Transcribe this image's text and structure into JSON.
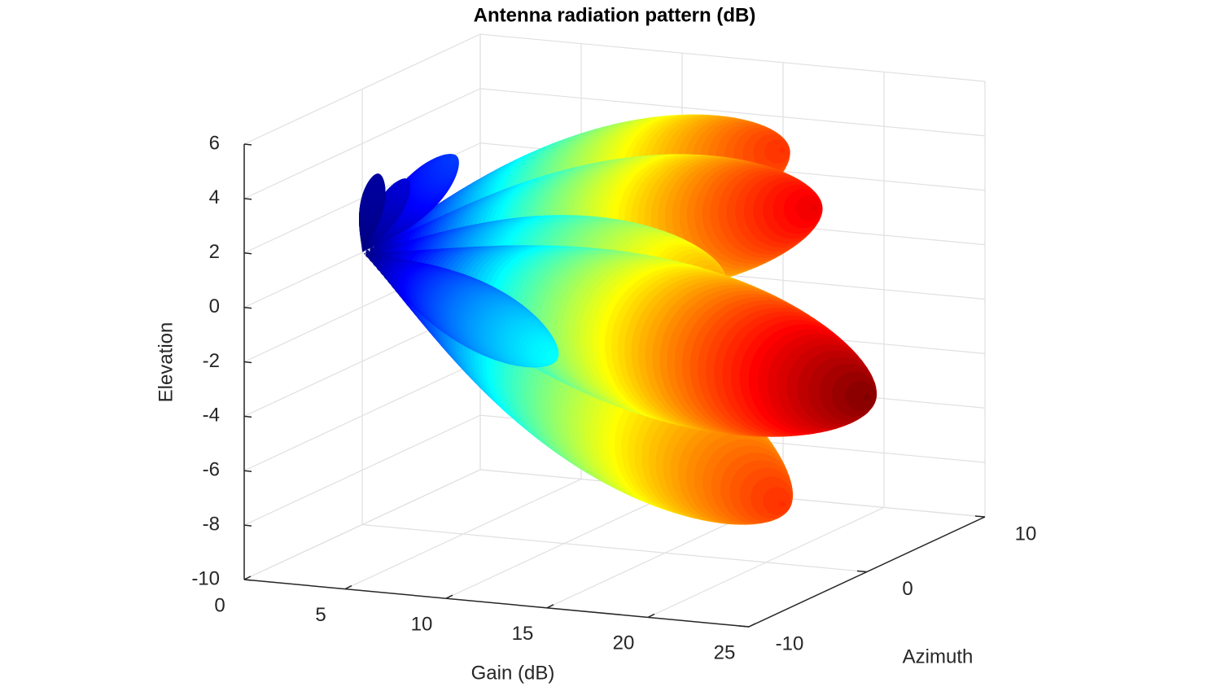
{
  "chart_data": {
    "type": "surface3d",
    "title": "Antenna radiation pattern (dB)",
    "xlabel": "Gain (dB)",
    "ylabel": "Azimuth",
    "zlabel": "Elevation",
    "xlim": [
      0,
      25
    ],
    "xticks": [
      0,
      5,
      10,
      15,
      20,
      25
    ],
    "ylim": [
      -10,
      10
    ],
    "yticks": [
      -10,
      0,
      10
    ],
    "zlim": [
      -10,
      6
    ],
    "zticks": [
      -10,
      -8,
      -6,
      -4,
      -2,
      0,
      2,
      4,
      6
    ],
    "grid": true,
    "colormap": "jet",
    "lobe_origin": {
      "gain": 0,
      "azimuth": 0,
      "elevation": 0
    },
    "lobes": [
      {
        "gain": 20.8,
        "azimuth": 0,
        "elevation": 5.2
      },
      {
        "gain": 22.4,
        "azimuth": 0,
        "elevation": 3.2
      },
      {
        "gain": 17.7,
        "azimuth": 0,
        "elevation": 0.2
      },
      {
        "gain": 20.8,
        "azimuth": 0,
        "elevation": -7.8
      },
      {
        "gain": 25,
        "azimuth": 0,
        "elevation": -3.6
      },
      {
        "gain": 4.6,
        "azimuth": 0,
        "elevation": 3.8
      },
      {
        "gain": 2.2,
        "azimuth": 0,
        "elevation": 2.8
      },
      {
        "gain": 0.8,
        "azimuth": 0,
        "elevation": 2.9
      },
      {
        "gain": 9.5,
        "azimuth": 0,
        "elevation": -3.2
      }
    ]
  }
}
